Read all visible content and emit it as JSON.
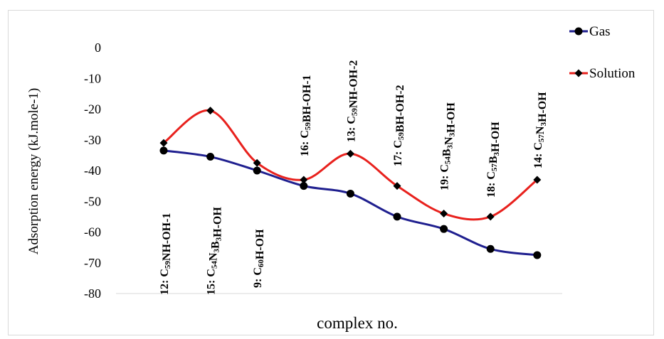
{
  "chart_data": {
    "type": "line",
    "smooth": true,
    "title": "",
    "xlabel": "complex no.",
    "ylabel": "Adsorption energy (kJ.mole-1)",
    "ylim": [
      -80,
      0
    ],
    "yticks": [
      0,
      -10,
      -20,
      -30,
      -40,
      -50,
      -60,
      -70,
      -80
    ],
    "grid": false,
    "legend_position": "top-right",
    "categories": [
      "12: C59NH-OH-1",
      "15: C54N3B3H-OH",
      "9: C60H-OH",
      "16: C59BH-OH-1",
      "13: C59NH-OH-2",
      "17: C59BH-OH-2",
      "19: C54B3N3H-OH",
      "18: C57B3H-OH",
      "14: C57N3H-OH"
    ],
    "category_labels": [
      [
        {
          "t": "12: C"
        },
        {
          "t": "59",
          "sub": true
        },
        {
          "t": "NH-OH-1"
        }
      ],
      [
        {
          "t": "15: C"
        },
        {
          "t": "54",
          "sub": true
        },
        {
          "t": "N"
        },
        {
          "t": "3",
          "sub": true
        },
        {
          "t": "B"
        },
        {
          "t": "3",
          "sub": true
        },
        {
          "t": "H-OH"
        }
      ],
      [
        {
          "t": "9: C"
        },
        {
          "t": "60",
          "sub": true
        },
        {
          "t": "H-OH"
        }
      ],
      [
        {
          "t": "16: C"
        },
        {
          "t": "59",
          "sub": true
        },
        {
          "t": "BH-OH-1"
        }
      ],
      [
        {
          "t": "13: C"
        },
        {
          "t": "59",
          "sub": true
        },
        {
          "t": "NH-OH-2"
        }
      ],
      [
        {
          "t": "17: C"
        },
        {
          "t": "59",
          "sub": true
        },
        {
          "t": "BH-OH-2"
        }
      ],
      [
        {
          "t": "19: C"
        },
        {
          "t": "54",
          "sub": true
        },
        {
          "t": "B"
        },
        {
          "t": "3",
          "sub": true
        },
        {
          "t": "N"
        },
        {
          "t": "3",
          "sub": true
        },
        {
          "t": "H-OH"
        }
      ],
      [
        {
          "t": "18: C"
        },
        {
          "t": "57",
          "sub": true
        },
        {
          "t": "B"
        },
        {
          "t": "3",
          "sub": true
        },
        {
          "t": "H-OH"
        }
      ],
      [
        {
          "t": "14: C"
        },
        {
          "t": "57",
          "sub": true
        },
        {
          "t": "N"
        },
        {
          "t": "3",
          "sub": true
        },
        {
          "t": "H-OH"
        }
      ]
    ],
    "series": [
      {
        "name": "Gas",
        "color": "#1f1f8f",
        "marker": "circle",
        "values": [
          -33.5,
          -35.5,
          -40,
          -45,
          -47.5,
          -55,
          -59,
          -65.5,
          -67.5
        ]
      },
      {
        "name": "Solution",
        "color": "#e8211d",
        "marker": "diamond",
        "values": [
          -31,
          -20.5,
          -37.5,
          -43,
          -34.5,
          -45,
          -54,
          -55,
          -43
        ]
      }
    ]
  }
}
